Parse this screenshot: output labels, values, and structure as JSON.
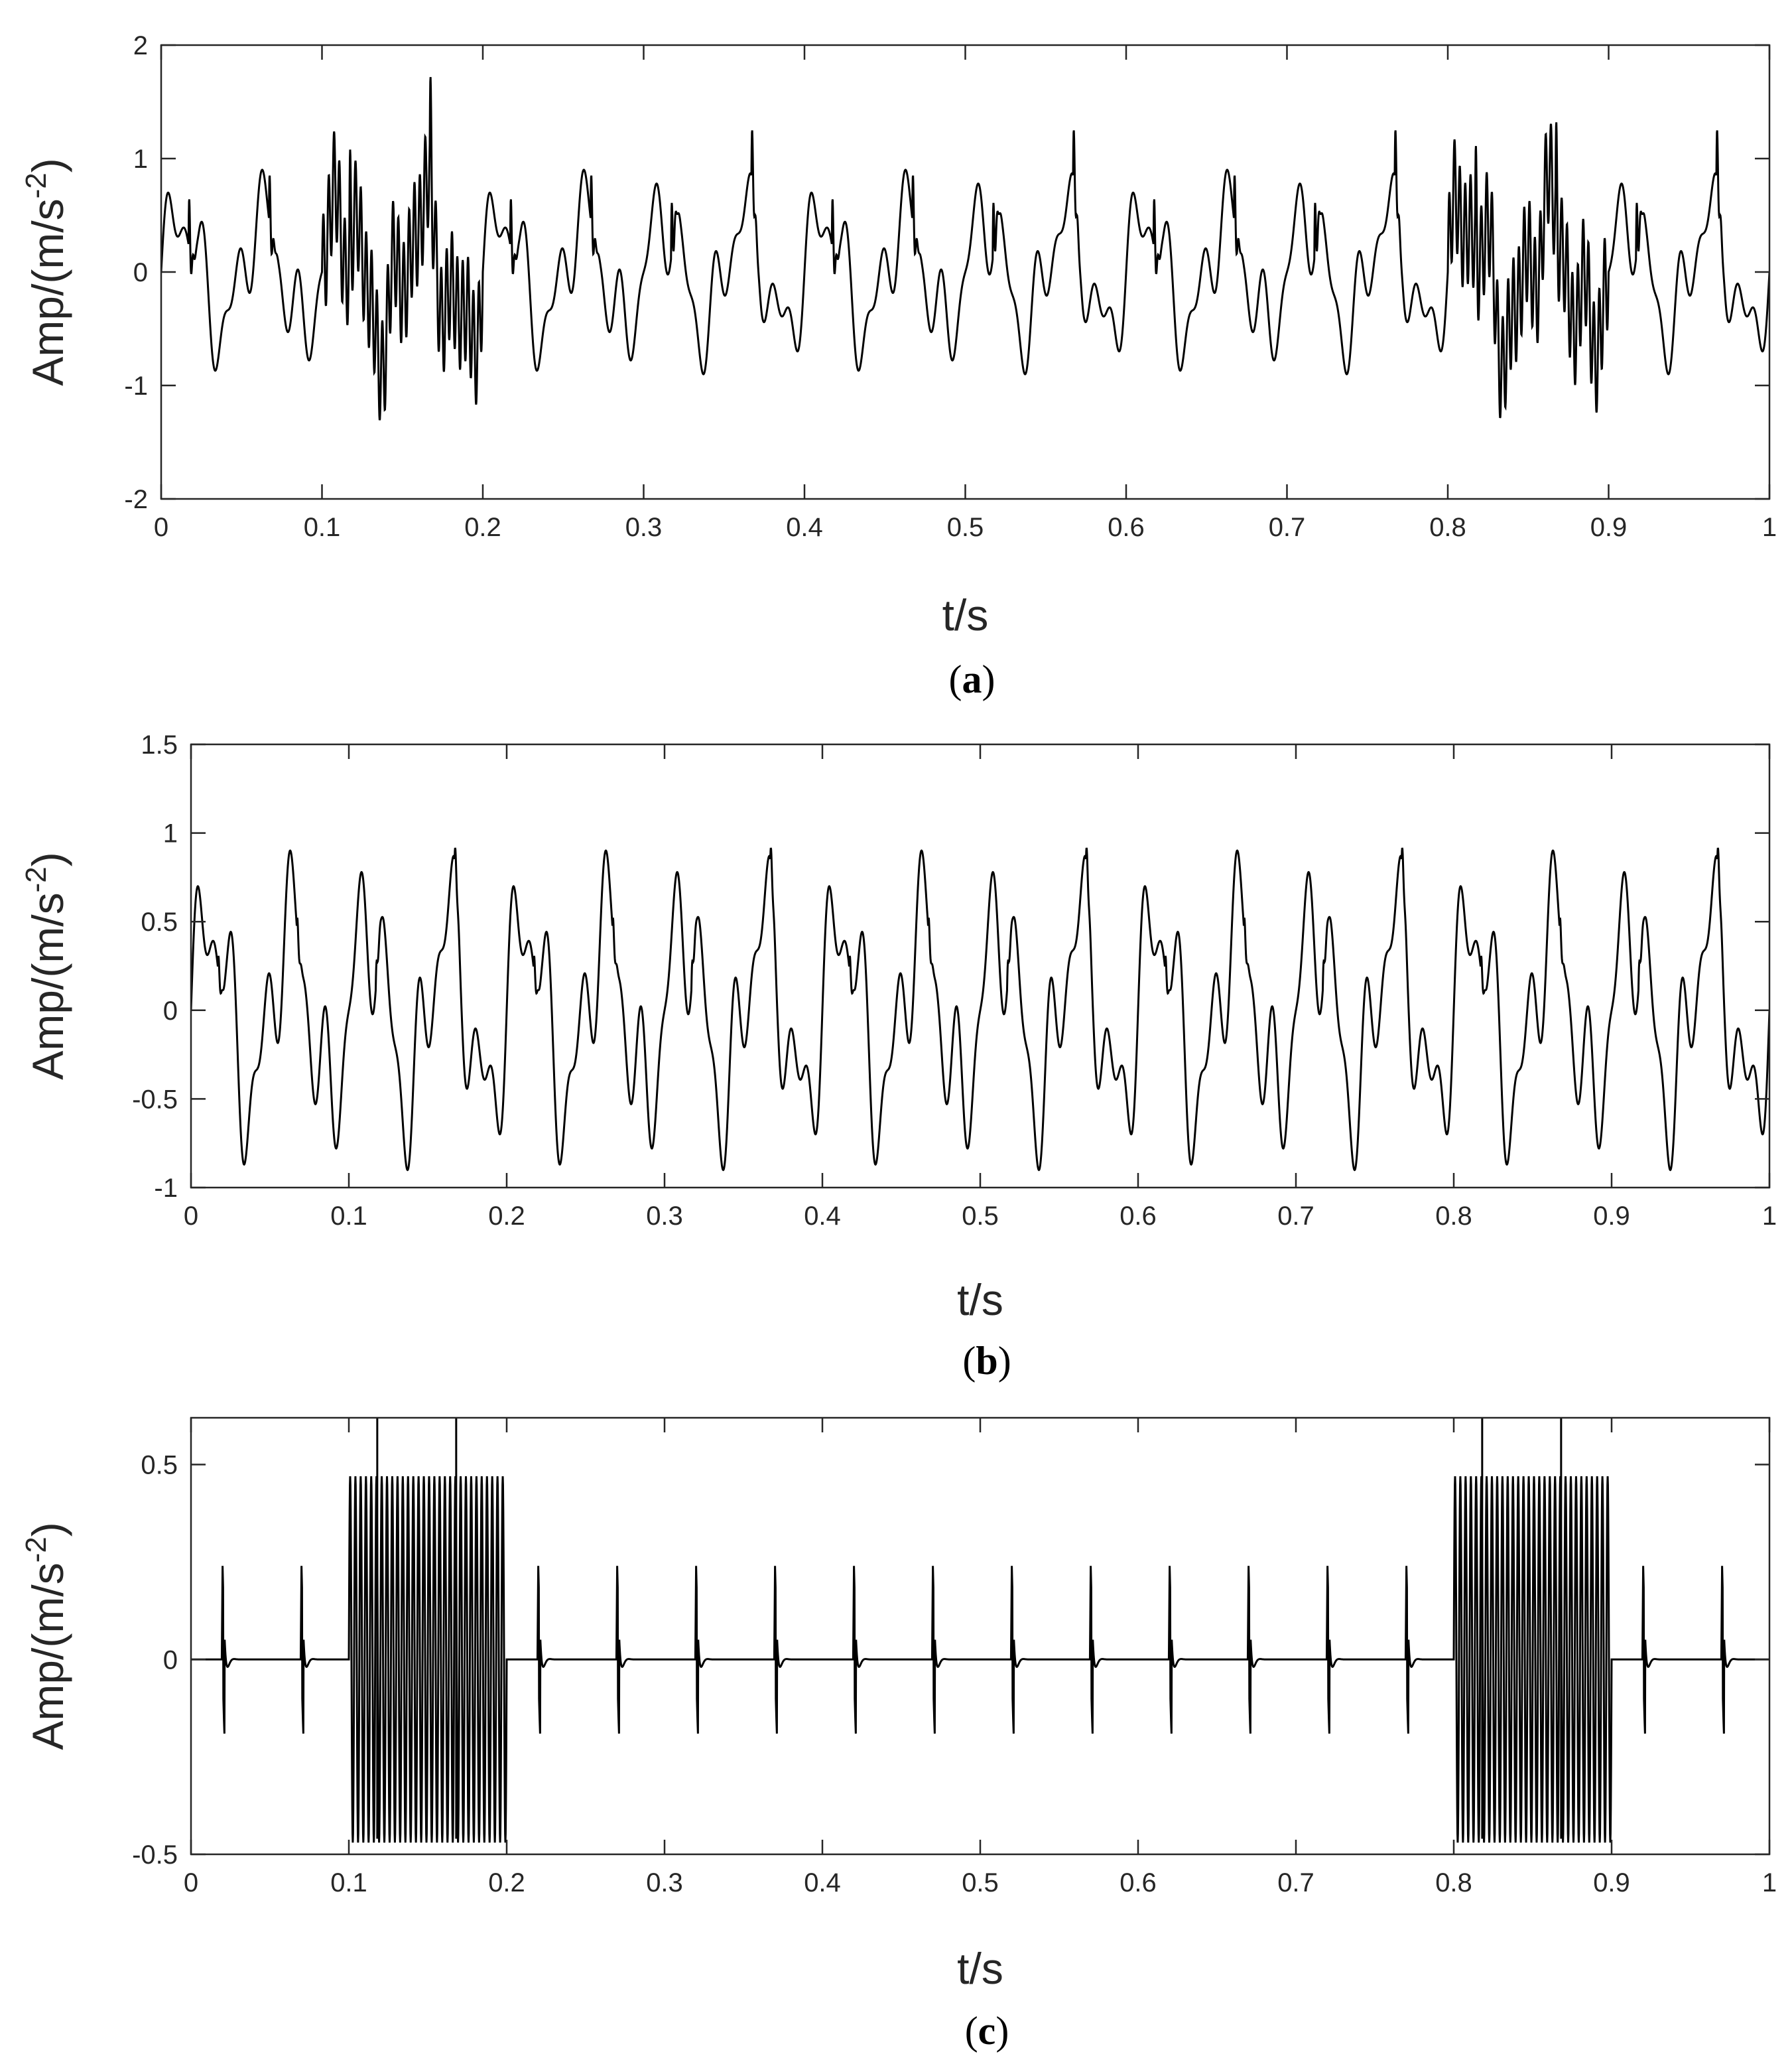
{
  "chart_data": [
    {
      "type": "line",
      "panel_label": "a",
      "xlabel": "t/s",
      "ylabel": "Amp/(m/s",
      "ylabel_sup": "-2",
      "ylabel_close": ")",
      "xlim": [
        0,
        1
      ],
      "ylim": [
        -2,
        2
      ],
      "xticks": [
        0,
        0.1,
        0.2,
        0.3,
        0.4,
        0.5,
        0.6,
        0.7,
        0.8,
        0.9,
        1
      ],
      "xtick_labels": [
        "0",
        "0.1",
        "0.2",
        "0.3",
        "0.4",
        "0.5",
        "0.6",
        "0.7",
        "0.8",
        "0.9",
        "1"
      ],
      "yticks": [
        -2,
        -1,
        0,
        1,
        2
      ],
      "ytick_labels": [
        "-2",
        "-1",
        "0",
        "1",
        "2"
      ],
      "grid": false,
      "series_color": "#000000",
      "signal": {
        "sine_components": [
          {
            "amplitude": 0.5,
            "frequency_hz": 20
          },
          {
            "amplitude": 0.3,
            "frequency_hz": 50
          },
          {
            "amplitude": 0.2,
            "frequency_hz": 85
          }
        ],
        "impulse_period_s": 0.05,
        "impulse_first_s": 0.017,
        "impulse_amplitude": 0.7,
        "burst_intervals_s": [
          [
            0.1,
            0.2
          ],
          [
            0.8,
            0.9
          ]
        ],
        "burst_amplitude": 0.47,
        "burst_frequency_hz": 300,
        "burst_included": true,
        "approx_range": [
          -1.42,
          1.72
        ]
      }
    },
    {
      "type": "line",
      "panel_label": "b",
      "xlabel": "t/s",
      "ylabel": "Amp/(m/s",
      "ylabel_sup": "-2",
      "ylabel_close": ")",
      "xlim": [
        0,
        1
      ],
      "ylim": [
        -1,
        1.5
      ],
      "xticks": [
        0,
        0.1,
        0.2,
        0.3,
        0.4,
        0.5,
        0.6,
        0.7,
        0.8,
        0.9,
        1
      ],
      "xtick_labels": [
        "0",
        "0.1",
        "0.2",
        "0.3",
        "0.4",
        "0.5",
        "0.6",
        "0.7",
        "0.8",
        "0.9",
        "1"
      ],
      "yticks": [
        -1,
        -0.5,
        0,
        0.5,
        1,
        1.5
      ],
      "ytick_labels": [
        "-1",
        "-0.5",
        "0",
        "0.5",
        "1",
        "1.5"
      ],
      "grid": false,
      "series_color": "#000000",
      "signal": {
        "sine_components": [
          {
            "amplitude": 0.5,
            "frequency_hz": 20
          },
          {
            "amplitude": 0.3,
            "frequency_hz": 50
          },
          {
            "amplitude": 0.2,
            "frequency_hz": 85
          }
        ],
        "impulse_period_s": 0.05,
        "impulse_first_s": 0.017,
        "impulse_amplitude": 0.15,
        "burst_included": false,
        "approx_range": [
          -1.0,
          1.05
        ]
      }
    },
    {
      "type": "line",
      "panel_label": "c",
      "xlabel": "t/s",
      "ylabel": "Amp/(m/s",
      "ylabel_sup": "-2",
      "ylabel_close": ")",
      "xlim": [
        0,
        1
      ],
      "ylim": [
        -0.5,
        0.62
      ],
      "xticks": [
        0,
        0.1,
        0.2,
        0.3,
        0.4,
        0.5,
        0.6,
        0.7,
        0.8,
        0.9,
        1
      ],
      "xtick_labels": [
        "0",
        "0.1",
        "0.2",
        "0.3",
        "0.4",
        "0.5",
        "0.6",
        "0.7",
        "0.8",
        "0.9",
        "1"
      ],
      "yticks": [
        -0.5,
        0,
        0.5
      ],
      "ytick_labels": [
        "-0.5",
        "0",
        "0.5"
      ],
      "grid": false,
      "series_color": "#000000",
      "signal": {
        "impulse_times_s": [
          0.02,
          0.07,
          0.22,
          0.27,
          0.32,
          0.37,
          0.42,
          0.47,
          0.52,
          0.57,
          0.62,
          0.67,
          0.72,
          0.77,
          0.92,
          0.97
        ],
        "impulse_peak": 0.24,
        "impulse_trough": -0.21,
        "burst_intervals_s": [
          [
            0.1,
            0.2
          ],
          [
            0.8,
            0.9
          ]
        ],
        "burst_amplitude": 0.47,
        "burst_frequency_hz": 300,
        "burst_spike_times_s": [
          0.118,
          0.168,
          0.818,
          0.868
        ],
        "burst_spike_value": 0.62
      }
    }
  ]
}
